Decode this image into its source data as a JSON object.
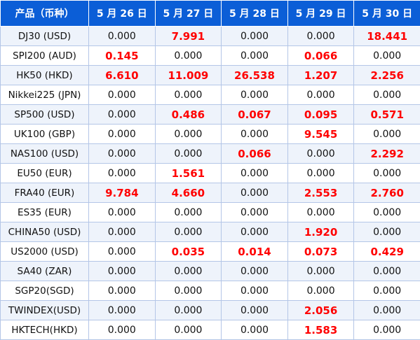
{
  "table": {
    "headers": [
      "产品（币种）",
      "5 月 26 日",
      "5 月 27 日",
      "5 月 28 日",
      "5 月 29 日",
      "5 月 30 日"
    ],
    "highlight_color": "#ff0000",
    "header_bg": "#0b5ed7",
    "rows": [
      {
        "product": "DJ30 (USD)",
        "values": [
          "0.000",
          "7.991",
          "0.000",
          "0.000",
          "18.441"
        ]
      },
      {
        "product": "SPI200 (AUD)",
        "values": [
          "0.145",
          "0.000",
          "0.000",
          "0.066",
          "0.000"
        ]
      },
      {
        "product": "HK50 (HKD)",
        "values": [
          "6.610",
          "11.009",
          "26.538",
          "1.207",
          "2.256"
        ]
      },
      {
        "product": "Nikkei225 (JPN)",
        "values": [
          "0.000",
          "0.000",
          "0.000",
          "0.000",
          "0.000"
        ]
      },
      {
        "product": "SP500 (USD)",
        "values": [
          "0.000",
          "0.486",
          "0.067",
          "0.095",
          "0.571"
        ]
      },
      {
        "product": "UK100 (GBP)",
        "values": [
          "0.000",
          "0.000",
          "0.000",
          "9.545",
          "0.000"
        ]
      },
      {
        "product": "NAS100 (USD)",
        "values": [
          "0.000",
          "0.000",
          "0.066",
          "0.000",
          "2.292"
        ]
      },
      {
        "product": "EU50 (EUR)",
        "values": [
          "0.000",
          "1.561",
          "0.000",
          "0.000",
          "0.000"
        ]
      },
      {
        "product": "FRA40 (EUR)",
        "values": [
          "9.784",
          "4.660",
          "0.000",
          "2.553",
          "2.760"
        ]
      },
      {
        "product": "ES35 (EUR)",
        "values": [
          "0.000",
          "0.000",
          "0.000",
          "0.000",
          "0.000"
        ]
      },
      {
        "product": "CHINA50 (USD)",
        "values": [
          "0.000",
          "0.000",
          "0.000",
          "1.920",
          "0.000"
        ]
      },
      {
        "product": "US2000 (USD)",
        "values": [
          "0.000",
          "0.035",
          "0.014",
          "0.073",
          "0.429"
        ]
      },
      {
        "product": "SA40 (ZAR)",
        "values": [
          "0.000",
          "0.000",
          "0.000",
          "0.000",
          "0.000"
        ]
      },
      {
        "product": "SGP20(SGD)",
        "values": [
          "0.000",
          "0.000",
          "0.000",
          "0.000",
          "0.000"
        ]
      },
      {
        "product": "TWINDEX(USD)",
        "values": [
          "0.000",
          "0.000",
          "0.000",
          "2.056",
          "0.000"
        ]
      },
      {
        "product": "HKTECH(HKD)",
        "values": [
          "0.000",
          "0.000",
          "0.000",
          "1.583",
          "0.000"
        ]
      }
    ]
  }
}
